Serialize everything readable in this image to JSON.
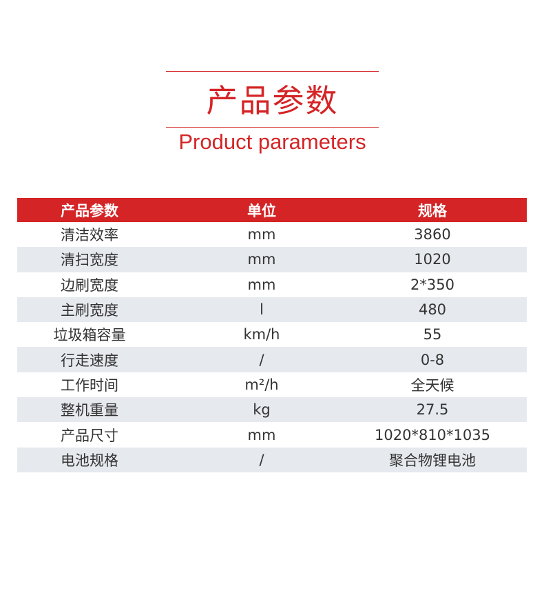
{
  "title": {
    "cn": "产品参数",
    "en": "Product parameters"
  },
  "colors": {
    "accent": "#d42426",
    "stripe": "#e6e9ee"
  },
  "table": {
    "headers": [
      "产品参数",
      "单位",
      "规格"
    ],
    "rows": [
      {
        "param": "清洁效率",
        "unit": "mm",
        "spec": "3860"
      },
      {
        "param": "清扫宽度",
        "unit": "mm",
        "spec": "1020"
      },
      {
        "param": "边刷宽度",
        "unit": "mm",
        "spec": "2*350"
      },
      {
        "param": "主刷宽度",
        "unit": "l",
        "spec": "480"
      },
      {
        "param": "垃圾箱容量",
        "unit": "km/h",
        "spec": "55"
      },
      {
        "param": "行走速度",
        "unit": "/",
        "spec": "0-8"
      },
      {
        "param": "工作时间",
        "unit": "m²/h",
        "spec": "全天候"
      },
      {
        "param": "整机重量",
        "unit": "kg",
        "spec": "27.5"
      },
      {
        "param": "产品尺寸",
        "unit": "mm",
        "spec": "1020*810*1035"
      },
      {
        "param": "电池规格",
        "unit": "/",
        "spec": "聚合物锂电池"
      }
    ]
  }
}
